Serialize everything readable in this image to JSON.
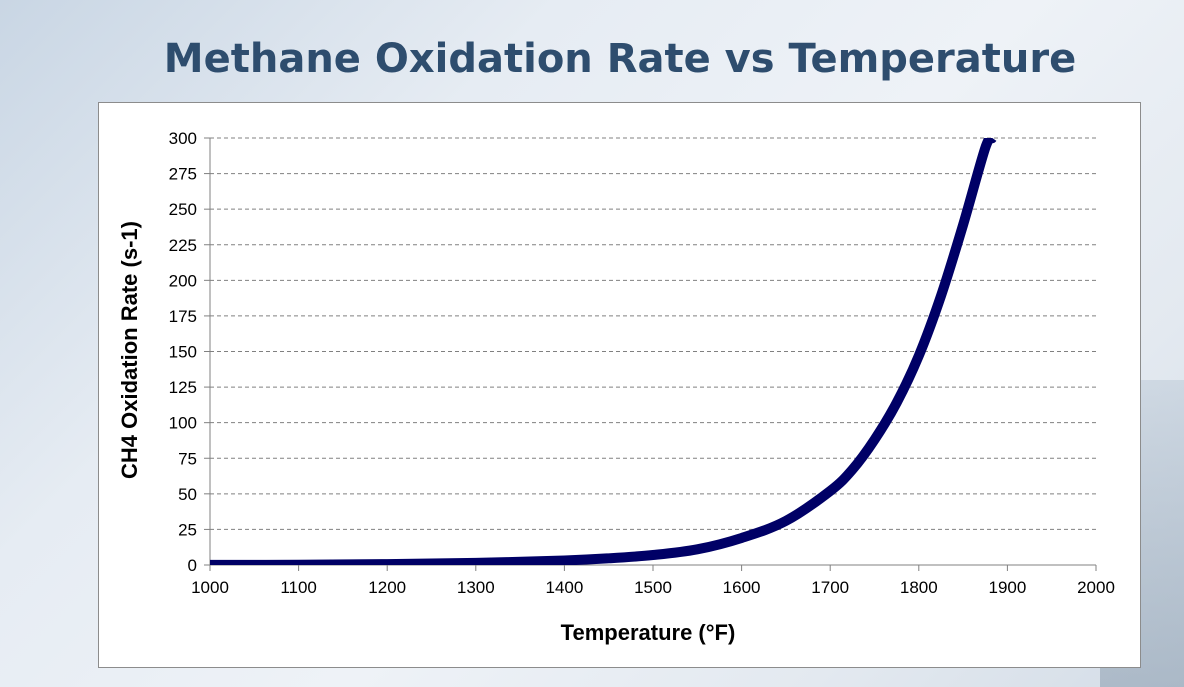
{
  "slide": {
    "title": "Methane Oxidation Rate vs Temperature"
  },
  "chart_data": {
    "type": "line",
    "title": "",
    "xlabel": "Temperature (°F)",
    "ylabel": "CH4  Oxidation Rate (s-1)",
    "xlim": [
      1000,
      2000
    ],
    "ylim": [
      0,
      300
    ],
    "x_ticks": [
      "1000",
      "1100",
      "1200",
      "1300",
      "1400",
      "1500",
      "1600",
      "1700",
      "1800",
      "1900",
      "2000"
    ],
    "y_ticks": [
      "0",
      "25",
      "50",
      "75",
      "100",
      "125",
      "150",
      "175",
      "200",
      "225",
      "250",
      "275",
      "300"
    ],
    "grid": true,
    "series": [
      {
        "color": "#000066",
        "x": [
          1000,
          1100,
          1200,
          1300,
          1400,
          1450,
          1500,
          1550,
          1600,
          1650,
          1700,
          1725,
          1750,
          1775,
          1800,
          1825,
          1850,
          1875,
          1883
        ],
        "y": [
          0.05,
          0.2,
          0.6,
          1.5,
          3.2,
          4.7,
          7,
          11,
          19,
          31,
          52,
          67,
          88,
          114,
          147,
          189,
          239,
          293,
          300
        ]
      }
    ]
  }
}
